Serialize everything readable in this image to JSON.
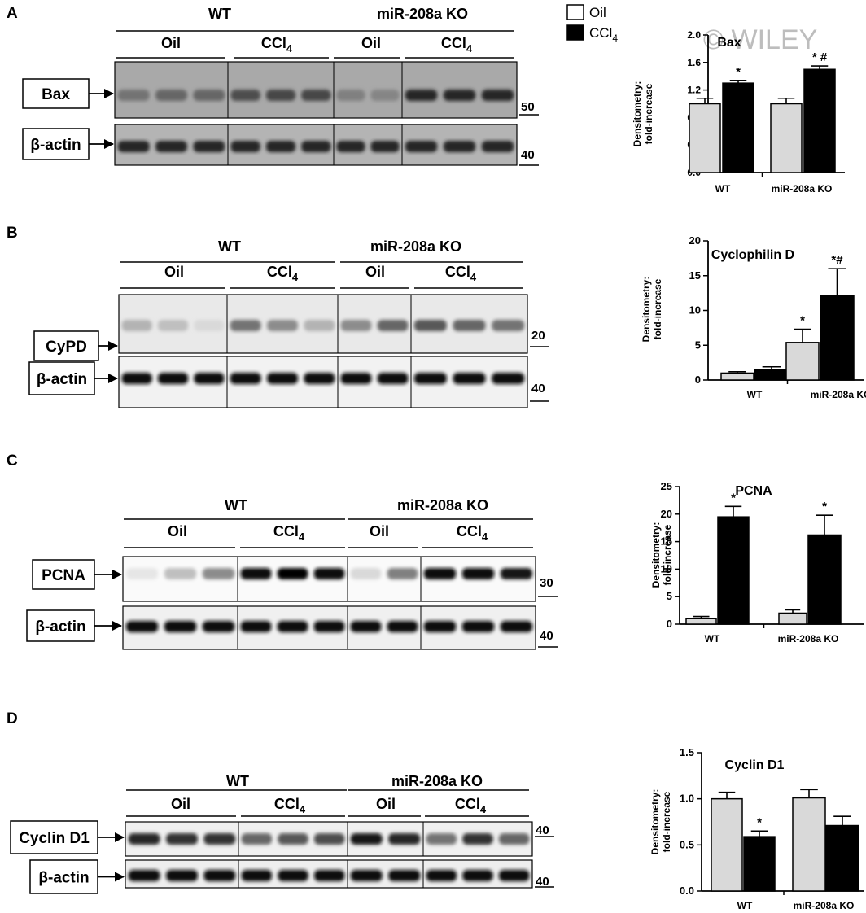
{
  "legend": {
    "items": [
      {
        "label": "Oil",
        "color": "#ffffff"
      },
      {
        "label": "CCl4",
        "color": "#000000"
      }
    ]
  },
  "watermark": "© WILEY",
  "panels": [
    {
      "letter": "A",
      "group_labels": [
        "WT",
        "miR-208a KO"
      ],
      "treatment_labels": [
        "Oil",
        "CCl",
        "Oil",
        "CCl"
      ],
      "subscript": "4",
      "blots": [
        {
          "label": "Bax",
          "marker": "50",
          "band_intensity": [
            0.55,
            0.6,
            0.6,
            0.7,
            0.72,
            0.72,
            0.5,
            0.48,
            0.85,
            0.85,
            0.85
          ],
          "background": "#a9a9a9"
        },
        {
          "label": "β-actin",
          "marker": "40",
          "band_intensity": [
            0.85,
            0.85,
            0.85,
            0.85,
            0.85,
            0.85,
            0.85,
            0.85,
            0.85,
            0.85,
            0.85
          ],
          "background": "#b4b4b4"
        }
      ]
    },
    {
      "letter": "B",
      "group_labels": [
        "WT",
        "miR-208a KO"
      ],
      "treatment_labels": [
        "Oil",
        "CCl",
        "Oil",
        "CCl"
      ],
      "subscript": "4",
      "blots": [
        {
          "label": "CyPD",
          "marker": "20",
          "band_intensity": [
            0.3,
            0.25,
            0.15,
            0.55,
            0.45,
            0.3,
            0.45,
            0.6,
            0.65,
            0.6,
            0.55
          ],
          "background": "#e9e9e9"
        },
        {
          "label": "β-actin",
          "marker": "40",
          "band_intensity": [
            0.95,
            0.95,
            0.95,
            0.95,
            0.95,
            0.95,
            0.95,
            0.95,
            0.95,
            0.95,
            0.95
          ],
          "background": "#f2f2f2"
        }
      ]
    },
    {
      "letter": "C",
      "group_labels": [
        "WT",
        "miR-208a KO"
      ],
      "treatment_labels": [
        "Oil",
        "CCl",
        "Oil",
        "CCl"
      ],
      "subscript": "4",
      "blots": [
        {
          "label": "PCNA",
          "marker": "30",
          "band_intensity": [
            0.1,
            0.25,
            0.45,
            0.95,
            1.0,
            0.95,
            0.15,
            0.5,
            0.95,
            0.95,
            0.9
          ],
          "background": "#fafafa"
        },
        {
          "label": "β-actin",
          "marker": "40",
          "band_intensity": [
            0.95,
            0.95,
            0.95,
            0.95,
            0.95,
            0.95,
            0.95,
            0.95,
            0.95,
            0.95,
            0.95
          ],
          "background": "#f0f0f0"
        }
      ]
    },
    {
      "letter": "D",
      "group_labels": [
        "WT",
        "miR-208a KO"
      ],
      "treatment_labels": [
        "Oil",
        "CCl",
        "Oil",
        "CCl"
      ],
      "subscript": "4",
      "blots": [
        {
          "label": "Cyclin D1",
          "marker": "40",
          "band_intensity": [
            0.85,
            0.8,
            0.8,
            0.6,
            0.65,
            0.7,
            0.9,
            0.85,
            0.55,
            0.8,
            0.6
          ],
          "background": "#f0f0f0"
        },
        {
          "label": "β-actin",
          "marker": "40",
          "band_intensity": [
            0.95,
            0.95,
            0.95,
            0.95,
            0.95,
            0.95,
            0.95,
            0.95,
            0.95,
            0.95,
            0.95
          ],
          "background": "#eeeeee"
        }
      ]
    }
  ],
  "chart_data": [
    {
      "type": "bar",
      "title": "Bax",
      "ylabel": "Densitometry: fold-increase",
      "categories": [
        "WT",
        "miR-208a KO"
      ],
      "ylim": [
        0,
        2.0
      ],
      "yticks": [
        "0.0",
        "0.4",
        "0.8",
        "1.2",
        "1.6",
        "2.0"
      ],
      "series": [
        {
          "values": [
            1.0,
            1.0
          ],
          "errors": [
            0.08,
            0.08
          ],
          "color": "#d9d9d9",
          "annotations": [
            "",
            ""
          ]
        },
        {
          "values": [
            1.3,
            1.5
          ],
          "errors": [
            0.04,
            0.05
          ],
          "color": "#000000",
          "annotations": [
            "*",
            "* #"
          ]
        }
      ]
    },
    {
      "type": "bar",
      "title": "Cyclophilin D",
      "ylabel": "Densitometry: fold-increase",
      "categories": [
        "WT",
        "miR-208a KO"
      ],
      "ylim": [
        0,
        20
      ],
      "yticks": [
        "0",
        "5",
        "10",
        "15",
        "20"
      ],
      "series": [
        {
          "values": [
            1.0,
            5.4
          ],
          "errors": [
            0.2,
            1.9
          ],
          "color": "#d9d9d9",
          "annotations": [
            "",
            "*"
          ]
        },
        {
          "values": [
            1.5,
            12.1
          ],
          "errors": [
            0.4,
            3.9
          ],
          "color": "#000000",
          "annotations": [
            "",
            "*#"
          ]
        }
      ]
    },
    {
      "type": "bar",
      "title": "PCNA",
      "ylabel": "Densitometry: fold-increase",
      "categories": [
        "WT",
        "miR-208a KO"
      ],
      "ylim": [
        0,
        25
      ],
      "yticks": [
        "0",
        "5",
        "10",
        "15",
        "20",
        "25"
      ],
      "series": [
        {
          "values": [
            1.0,
            2.0
          ],
          "errors": [
            0.4,
            0.6
          ],
          "color": "#d9d9d9",
          "annotations": [
            "",
            ""
          ]
        },
        {
          "values": [
            19.5,
            16.2
          ],
          "errors": [
            1.9,
            3.6
          ],
          "color": "#000000",
          "annotations": [
            "*",
            "*"
          ]
        }
      ]
    },
    {
      "type": "bar",
      "title": "Cyclin D1",
      "ylabel": "Densitometry: fold-increase",
      "categories": [
        "WT",
        "miR-208a KO"
      ],
      "ylim": [
        0,
        1.5
      ],
      "yticks": [
        "0.0",
        "0.5",
        "1.0",
        "1.5"
      ],
      "series": [
        {
          "values": [
            1.0,
            1.01
          ],
          "errors": [
            0.07,
            0.09
          ],
          "color": "#d9d9d9",
          "annotations": [
            "",
            ""
          ]
        },
        {
          "values": [
            0.59,
            0.71
          ],
          "errors": [
            0.06,
            0.1
          ],
          "color": "#000000",
          "annotations": [
            "*",
            ""
          ]
        }
      ]
    }
  ]
}
